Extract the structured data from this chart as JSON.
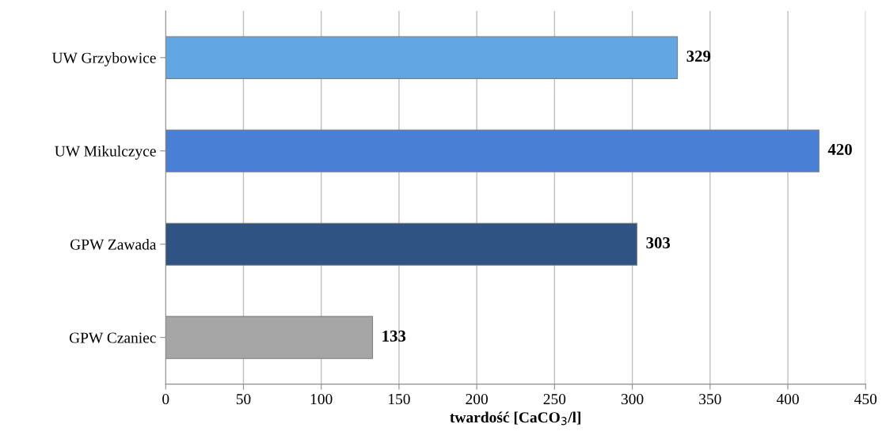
{
  "chart_data": {
    "type": "bar",
    "orientation": "horizontal",
    "categories": [
      "UW Grzybowice",
      "UW Mikulczyce",
      "GPW Zawada",
      "GPW Czaniec"
    ],
    "values": [
      329,
      420,
      303,
      133
    ],
    "colors": [
      "#62a6e3",
      "#4a7fd6",
      "#2f5483",
      "#a6a6a6"
    ],
    "xlabel": "twardość [CaCO$_{3}$/l]",
    "xlim": [
      0,
      450
    ],
    "xticks": [
      0,
      50,
      100,
      150,
      200,
      250,
      300,
      350,
      400,
      450
    ],
    "grid": "x",
    "data_labels": true
  }
}
